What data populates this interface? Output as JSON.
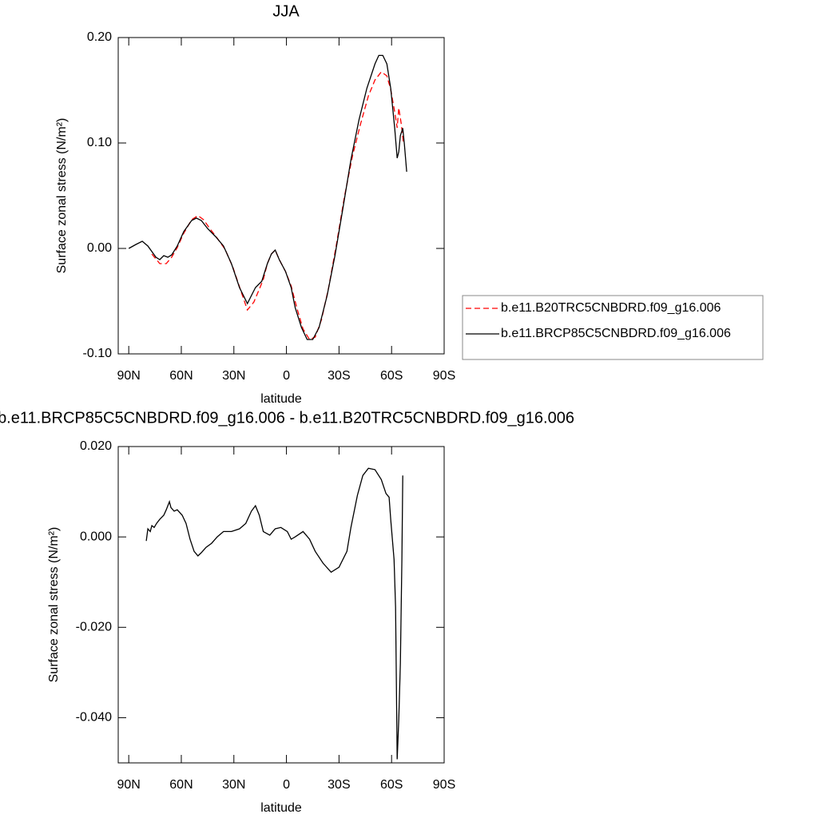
{
  "chart_data": [
    {
      "type": "line",
      "title": "JJA",
      "xlabel": "latitude",
      "ylabel": "Surface zonal stress (N/m²)",
      "xlim": [
        96,
        -90
      ],
      "ylim": [
        -0.1,
        0.2
      ],
      "xticks": [
        {
          "value": 90,
          "label": "90N"
        },
        {
          "value": 60,
          "label": "60N"
        },
        {
          "value": 30,
          "label": "30N"
        },
        0,
        {
          "value": -30,
          "label": "30S"
        },
        {
          "value": -60,
          "label": "60S"
        },
        {
          "value": -90,
          "label": "90S"
        }
      ],
      "yticks": [
        {
          "value": 0.2,
          "label": "0.20"
        },
        {
          "value": 0.1,
          "label": "0.10"
        },
        {
          "value": 0,
          "label": "0.00"
        },
        {
          "value": -0.1,
          "label": "-0.10"
        }
      ],
      "grid": false,
      "legend": "right",
      "series": [
        {
          "name": "b.e11.B20TRC5CNBDRD.f09_g16.006",
          "color": "#ff0000",
          "line_style": "dashed",
          "x": [
            76.8,
            72.3,
            68.6,
            65.5,
            62.3,
            58.6,
            54.1,
            50.5,
            47.3,
            44.1,
            39.5,
            35,
            30.5,
            25.9,
            22.3,
            18.6,
            15.5,
            13.2,
            10.9,
            8.6,
            6.4,
            4.1,
            0.5,
            -2.7,
            -5.9,
            -9.5,
            -13.2,
            -16.4,
            -20,
            -24.1,
            -28.6,
            -33.2,
            -37.7,
            -42.3,
            -46.8,
            -50.5,
            -54.1,
            -57.3,
            -59.5,
            -61.8,
            -63.2,
            -64.1,
            -65.5,
            -66.8
          ],
          "values": [
            -0.0053,
            -0.0144,
            -0.0144,
            -0.0083,
            0.0008,
            0.0144,
            0.0273,
            0.0311,
            0.0273,
            0.0197,
            0.0098,
            -0.0008,
            -0.0182,
            -0.0409,
            -0.0583,
            -0.0508,
            -0.0386,
            -0.0295,
            -0.0144,
            -0.0053,
            -0.0015,
            -0.0106,
            -0.022,
            -0.0356,
            -0.0561,
            -0.0765,
            -0.0864,
            -0.0841,
            -0.0674,
            -0.0371,
            0.0045,
            0.05,
            0.0879,
            0.1182,
            0.1447,
            0.1598,
            0.1674,
            0.1636,
            0.1508,
            0.1295,
            0.1144,
            0.1333,
            0.1182,
            0.0992
          ]
        },
        {
          "name": "b.e11.BRCP85C5CNBDRD.f09_g16.006",
          "color": "#000000",
          "line_style": "solid",
          "x": [
            90,
            85.9,
            82.3,
            79.1,
            74.5,
            72.3,
            70,
            67.7,
            65.5,
            62.3,
            58.6,
            54.1,
            51.4,
            48.6,
            45,
            40.5,
            35.9,
            31.4,
            26.8,
            22.3,
            20,
            17.7,
            14.1,
            10.9,
            8.6,
            6.4,
            4.1,
            0.5,
            -2.7,
            -5,
            -8.6,
            -11.8,
            -15,
            -18.6,
            -23.2,
            -27.7,
            -32.3,
            -36.8,
            -41.4,
            -45.9,
            -50.5,
            -52.7,
            -55,
            -57.3,
            -59.5,
            -61.8,
            -63.2,
            -64.1,
            -65,
            -66.4,
            -67.3,
            -68.6
          ],
          "values": [
            0,
            0.0038,
            0.0068,
            0.0023,
            -0.0083,
            -0.0106,
            -0.0068,
            -0.0083,
            -0.0061,
            0.0023,
            0.0159,
            0.0265,
            0.0288,
            0.0265,
            0.0189,
            0.0114,
            0.0023,
            -0.0144,
            -0.0371,
            -0.0523,
            -0.0447,
            -0.0371,
            -0.0311,
            -0.0144,
            -0.0053,
            -0.0015,
            -0.0106,
            -0.022,
            -0.0371,
            -0.0561,
            -0.075,
            -0.0864,
            -0.0864,
            -0.075,
            -0.0447,
            -0.0068,
            0.0386,
            0.0841,
            0.122,
            0.152,
            0.175,
            0.183,
            0.183,
            0.175,
            0.152,
            0.114,
            0.0856,
            0.0917,
            0.107,
            0.114,
            0.099,
            0.0727
          ]
        }
      ]
    },
    {
      "type": "line",
      "title": "b.e11.BRCP85C5CNBDRD.f09_g16.006 - b.e11.B20TRC5CNBDRD.f09_g16.006",
      "xlabel": "latitude",
      "ylabel": "Surface zonal stress (N/m²)",
      "xlim": [
        96,
        -90
      ],
      "ylim": [
        -0.05,
        0.02
      ],
      "xticks": [
        {
          "value": 90,
          "label": "90N"
        },
        {
          "value": 60,
          "label": "60N"
        },
        {
          "value": 30,
          "label": "30N"
        },
        0,
        {
          "value": -30,
          "label": "30S"
        },
        {
          "value": -60,
          "label": "60S"
        },
        {
          "value": -90,
          "label": "90S"
        }
      ],
      "yticks": [
        {
          "value": 0.02,
          "label": "0.020"
        },
        {
          "value": 0,
          "label": "0.000"
        },
        {
          "value": -0.02,
          "label": "-0.020"
        },
        {
          "value": -0.04,
          "label": "-0.040"
        }
      ],
      "grid": false,
      "color": "#000000",
      "x": [
        80,
        79.1,
        77.7,
        76.8,
        75.5,
        74.1,
        72.3,
        70,
        68.6,
        66.8,
        65.9,
        64.1,
        62.3,
        59.5,
        57.3,
        55,
        52.7,
        50.5,
        48.6,
        45.9,
        42.7,
        39.5,
        35.9,
        31.4,
        26.8,
        23.2,
        20,
        17.7,
        15.5,
        13.2,
        9.5,
        6.4,
        3.2,
        -0.5,
        -2.7,
        -5,
        -9.5,
        -13.2,
        -16.4,
        -20.9,
        -25.5,
        -30,
        -34.5,
        -36.8,
        -40.5,
        -43.6,
        -46.8,
        -50.5,
        -54.1,
        -56.8,
        -58.6,
        -59.5,
        -61.4,
        -62.3,
        -63.2,
        -64.1,
        -65,
        -65.9,
        -66.4
      ],
      "values": [
        -0.0009,
        0.0018,
        0.0012,
        0.0025,
        0.0021,
        0.003,
        0.0039,
        0.0048,
        0.006,
        0.0078,
        0.0065,
        0.0057,
        0.006,
        0.0048,
        0.003,
        -0.0005,
        -0.0032,
        -0.0042,
        -0.0035,
        -0.0023,
        -0.0014,
        0,
        0.0012,
        0.0012,
        0.0018,
        0.003,
        0.0057,
        0.0069,
        0.0048,
        0.0012,
        0.0004,
        0.0018,
        0.0021,
        0.0012,
        -0.0005,
        0,
        0.0012,
        -0.0005,
        -0.0032,
        -0.0058,
        -0.0078,
        -0.0067,
        -0.0032,
        0.0021,
        0.0092,
        0.0136,
        0.0152,
        0.0149,
        0.0127,
        0.0096,
        0.0088,
        0.0039,
        -0.005,
        -0.0156,
        -0.0492,
        -0.0404,
        -0.028,
        -0.005,
        0.0136
      ]
    }
  ]
}
